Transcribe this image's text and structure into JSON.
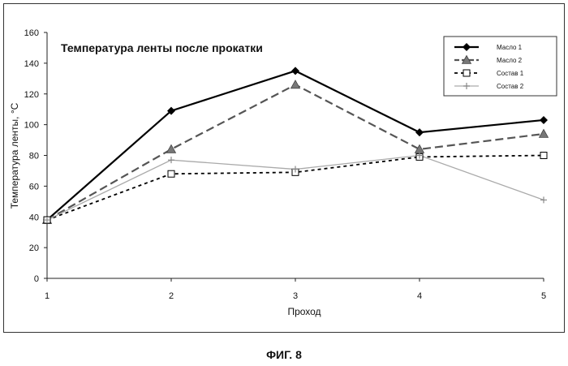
{
  "chart_data": {
    "type": "line",
    "title": "Температура ленты после прокатки",
    "xlabel": "Проход",
    "ylabel": "Температура ленты, °С",
    "x": [
      1,
      2,
      3,
      4,
      5
    ],
    "xlim": [
      1,
      5
    ],
    "ylim": [
      0,
      160
    ],
    "yticks": [
      0,
      20,
      40,
      60,
      80,
      100,
      120,
      140,
      160
    ],
    "grid": false,
    "legend_position": "top-right",
    "series": [
      {
        "name": "Масло 1",
        "values": [
          38,
          109,
          135,
          95,
          103
        ],
        "color": "#000000",
        "dash": "",
        "marker": "diamond",
        "width": 2.2
      },
      {
        "name": "Масло 2",
        "values": [
          38,
          84,
          126,
          84,
          94
        ],
        "color": "#555555",
        "dash": "10,5",
        "marker": "triangle",
        "width": 2.2
      },
      {
        "name": "Состав 1",
        "values": [
          38,
          68,
          69,
          79,
          80
        ],
        "color": "#000000",
        "dash": "4,4",
        "marker": "square",
        "width": 1.8
      },
      {
        "name": "Состав 2",
        "values": [
          38,
          77,
          71,
          80,
          51
        ],
        "color": "#aaaaaa",
        "dash": "",
        "marker": "cross",
        "width": 1.3
      }
    ]
  },
  "figure_caption": "ФИГ. 8"
}
